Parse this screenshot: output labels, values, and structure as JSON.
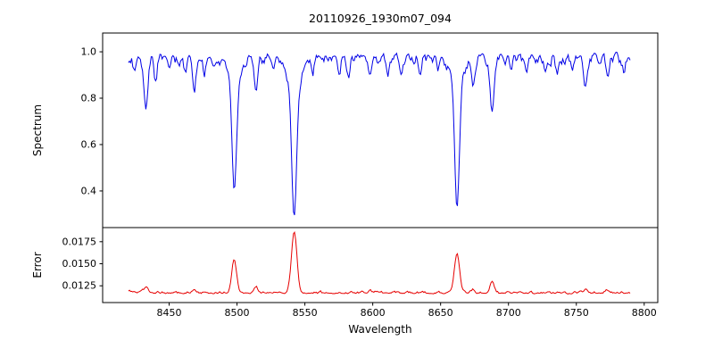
{
  "chart_data": {
    "type": "line",
    "title": "20110926_1930m07_094",
    "xlabel": "Wavelength",
    "xlim": [
      8401,
      8810
    ],
    "x_ticks": [
      8450,
      8500,
      8550,
      8600,
      8650,
      8700,
      8750,
      8800
    ],
    "x_start": 8420,
    "x_end": 8790,
    "x_step": 0.8,
    "grid": false,
    "legend": "none",
    "panels": [
      {
        "name": "spectrum",
        "ylabel": "Spectrum",
        "color": "#0000e6",
        "ylim": [
          0.242,
          1.081
        ],
        "y_ticks": [
          0.4,
          0.6,
          0.8,
          1.0
        ],
        "y_tick_labels": [
          "0.4",
          "0.6",
          "0.8",
          "1.0"
        ],
        "continuum": 0.975,
        "noise_amplitude": 0.026,
        "absorption_lines": [
          {
            "center": 8424.5,
            "depth": 0.06,
            "width": 1.0
          },
          {
            "center": 8433.0,
            "depth": 0.21,
            "width": 1.4
          },
          {
            "center": 8440.0,
            "depth": 0.1,
            "width": 1.1
          },
          {
            "center": 8450.0,
            "depth": 0.06,
            "width": 1.0
          },
          {
            "center": 8462.0,
            "depth": 0.07,
            "width": 1.1
          },
          {
            "center": 8468.5,
            "depth": 0.13,
            "width": 1.3
          },
          {
            "center": 8476.0,
            "depth": 0.06,
            "width": 1.0
          },
          {
            "center": 8498.0,
            "depth": 0.47,
            "width": 1.6
          },
          {
            "center": 8498.0,
            "depth": 0.1,
            "width": 4.5
          },
          {
            "center": 8514.0,
            "depth": 0.15,
            "width": 1.3
          },
          {
            "center": 8527.0,
            "depth": 0.05,
            "width": 1.0
          },
          {
            "center": 8542.1,
            "depth": 0.58,
            "width": 1.8
          },
          {
            "center": 8542.1,
            "depth": 0.11,
            "width": 5.5
          },
          {
            "center": 8556.0,
            "depth": 0.05,
            "width": 1.0
          },
          {
            "center": 8575.0,
            "depth": 0.06,
            "width": 1.1
          },
          {
            "center": 8582.0,
            "depth": 0.07,
            "width": 1.1
          },
          {
            "center": 8598.0,
            "depth": 0.09,
            "width": 1.2
          },
          {
            "center": 8611.0,
            "depth": 0.07,
            "width": 1.1
          },
          {
            "center": 8621.0,
            "depth": 0.08,
            "width": 1.1
          },
          {
            "center": 8635.0,
            "depth": 0.05,
            "width": 1.0
          },
          {
            "center": 8648.0,
            "depth": 0.05,
            "width": 1.0
          },
          {
            "center": 8662.1,
            "depth": 0.55,
            "width": 1.7
          },
          {
            "center": 8662.1,
            "depth": 0.1,
            "width": 5.0
          },
          {
            "center": 8674.0,
            "depth": 0.11,
            "width": 1.2
          },
          {
            "center": 8688.0,
            "depth": 0.23,
            "width": 1.5
          },
          {
            "center": 8702.0,
            "depth": 0.05,
            "width": 1.0
          },
          {
            "center": 8713.0,
            "depth": 0.07,
            "width": 1.1
          },
          {
            "center": 8727.0,
            "depth": 0.05,
            "width": 1.0
          },
          {
            "center": 8736.0,
            "depth": 0.07,
            "width": 1.1
          },
          {
            "center": 8747.0,
            "depth": 0.06,
            "width": 1.0
          },
          {
            "center": 8757.0,
            "depth": 0.12,
            "width": 1.3
          },
          {
            "center": 8773.0,
            "depth": 0.08,
            "width": 1.1
          },
          {
            "center": 8785.0,
            "depth": 0.06,
            "width": 1.0
          }
        ]
      },
      {
        "name": "error",
        "ylabel": "Error",
        "color": "#e60000",
        "ylim": [
          0.0106,
          0.0191
        ],
        "y_ticks": [
          0.0125,
          0.015,
          0.0175
        ],
        "y_tick_labels": [
          "0.0125",
          "0.0150",
          "0.0175"
        ],
        "baseline": 0.0117,
        "noise_amplitude": 0.00015,
        "peaks": [
          {
            "center": 8433.0,
            "height": 0.0007,
            "width": 1.5
          },
          {
            "center": 8468.5,
            "height": 0.0003,
            "width": 1.3
          },
          {
            "center": 8498.0,
            "height": 0.0038,
            "width": 1.7
          },
          {
            "center": 8514.0,
            "height": 0.0007,
            "width": 1.3
          },
          {
            "center": 8542.1,
            "height": 0.007,
            "width": 2.0
          },
          {
            "center": 8598.0,
            "height": 0.0003,
            "width": 1.2
          },
          {
            "center": 8662.1,
            "height": 0.0045,
            "width": 1.9
          },
          {
            "center": 8674.0,
            "height": 0.0004,
            "width": 1.2
          },
          {
            "center": 8688.0,
            "height": 0.0013,
            "width": 1.5
          },
          {
            "center": 8757.0,
            "height": 0.0005,
            "width": 1.2
          },
          {
            "center": 8773.0,
            "height": 0.0003,
            "width": 1.2
          }
        ]
      }
    ]
  }
}
